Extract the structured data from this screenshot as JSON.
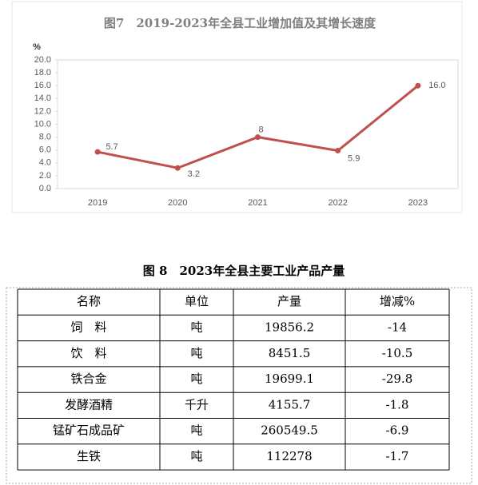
{
  "chart_data": {
    "type": "line",
    "title": "图7　2019-2023年全县工业增加值及其增长速度",
    "y_label": "%",
    "categories": [
      "2019",
      "2020",
      "2021",
      "2022",
      "2023"
    ],
    "values": [
      5.7,
      3.2,
      8,
      5.9,
      16.0
    ],
    "value_labels": [
      "5.7",
      "3.2",
      "8",
      "5.9",
      "16.0"
    ],
    "color": "#c0504d",
    "ylim": [
      0,
      20
    ],
    "yticks": [
      {
        "value": 0,
        "label": "0.0"
      },
      {
        "value": 2,
        "label": "2.0"
      },
      {
        "value": 4,
        "label": "4.0"
      },
      {
        "value": 6,
        "label": "6.0"
      },
      {
        "value": 8,
        "label": "8.0"
      },
      {
        "value": 10,
        "label": "10.0"
      },
      {
        "value": 12,
        "label": "12.0"
      },
      {
        "value": 14,
        "label": "14.0"
      },
      {
        "value": 16,
        "label": "16.0"
      },
      {
        "value": 18,
        "label": "18.0"
      },
      {
        "value": 20,
        "label": "20.0"
      }
    ]
  },
  "table": {
    "title": "图 8　2023年全县主要工业产品产量",
    "header": [
      "名称",
      "单位",
      "产量",
      "增减%"
    ],
    "rows": [
      [
        "饲　料",
        "吨",
        "19856.2",
        "-14"
      ],
      [
        "饮　料",
        "吨",
        "8451.5",
        "-10.5"
      ],
      [
        "铁合金",
        "吨",
        "19699.1",
        "-29.8"
      ],
      [
        "发酵酒精",
        "千升",
        "4155.7",
        "-1.8"
      ],
      [
        "锰矿石成品矿",
        "吨",
        "260549.5",
        "-6.9"
      ],
      [
        "生铁",
        "吨",
        "112278",
        "-1.7"
      ]
    ]
  }
}
